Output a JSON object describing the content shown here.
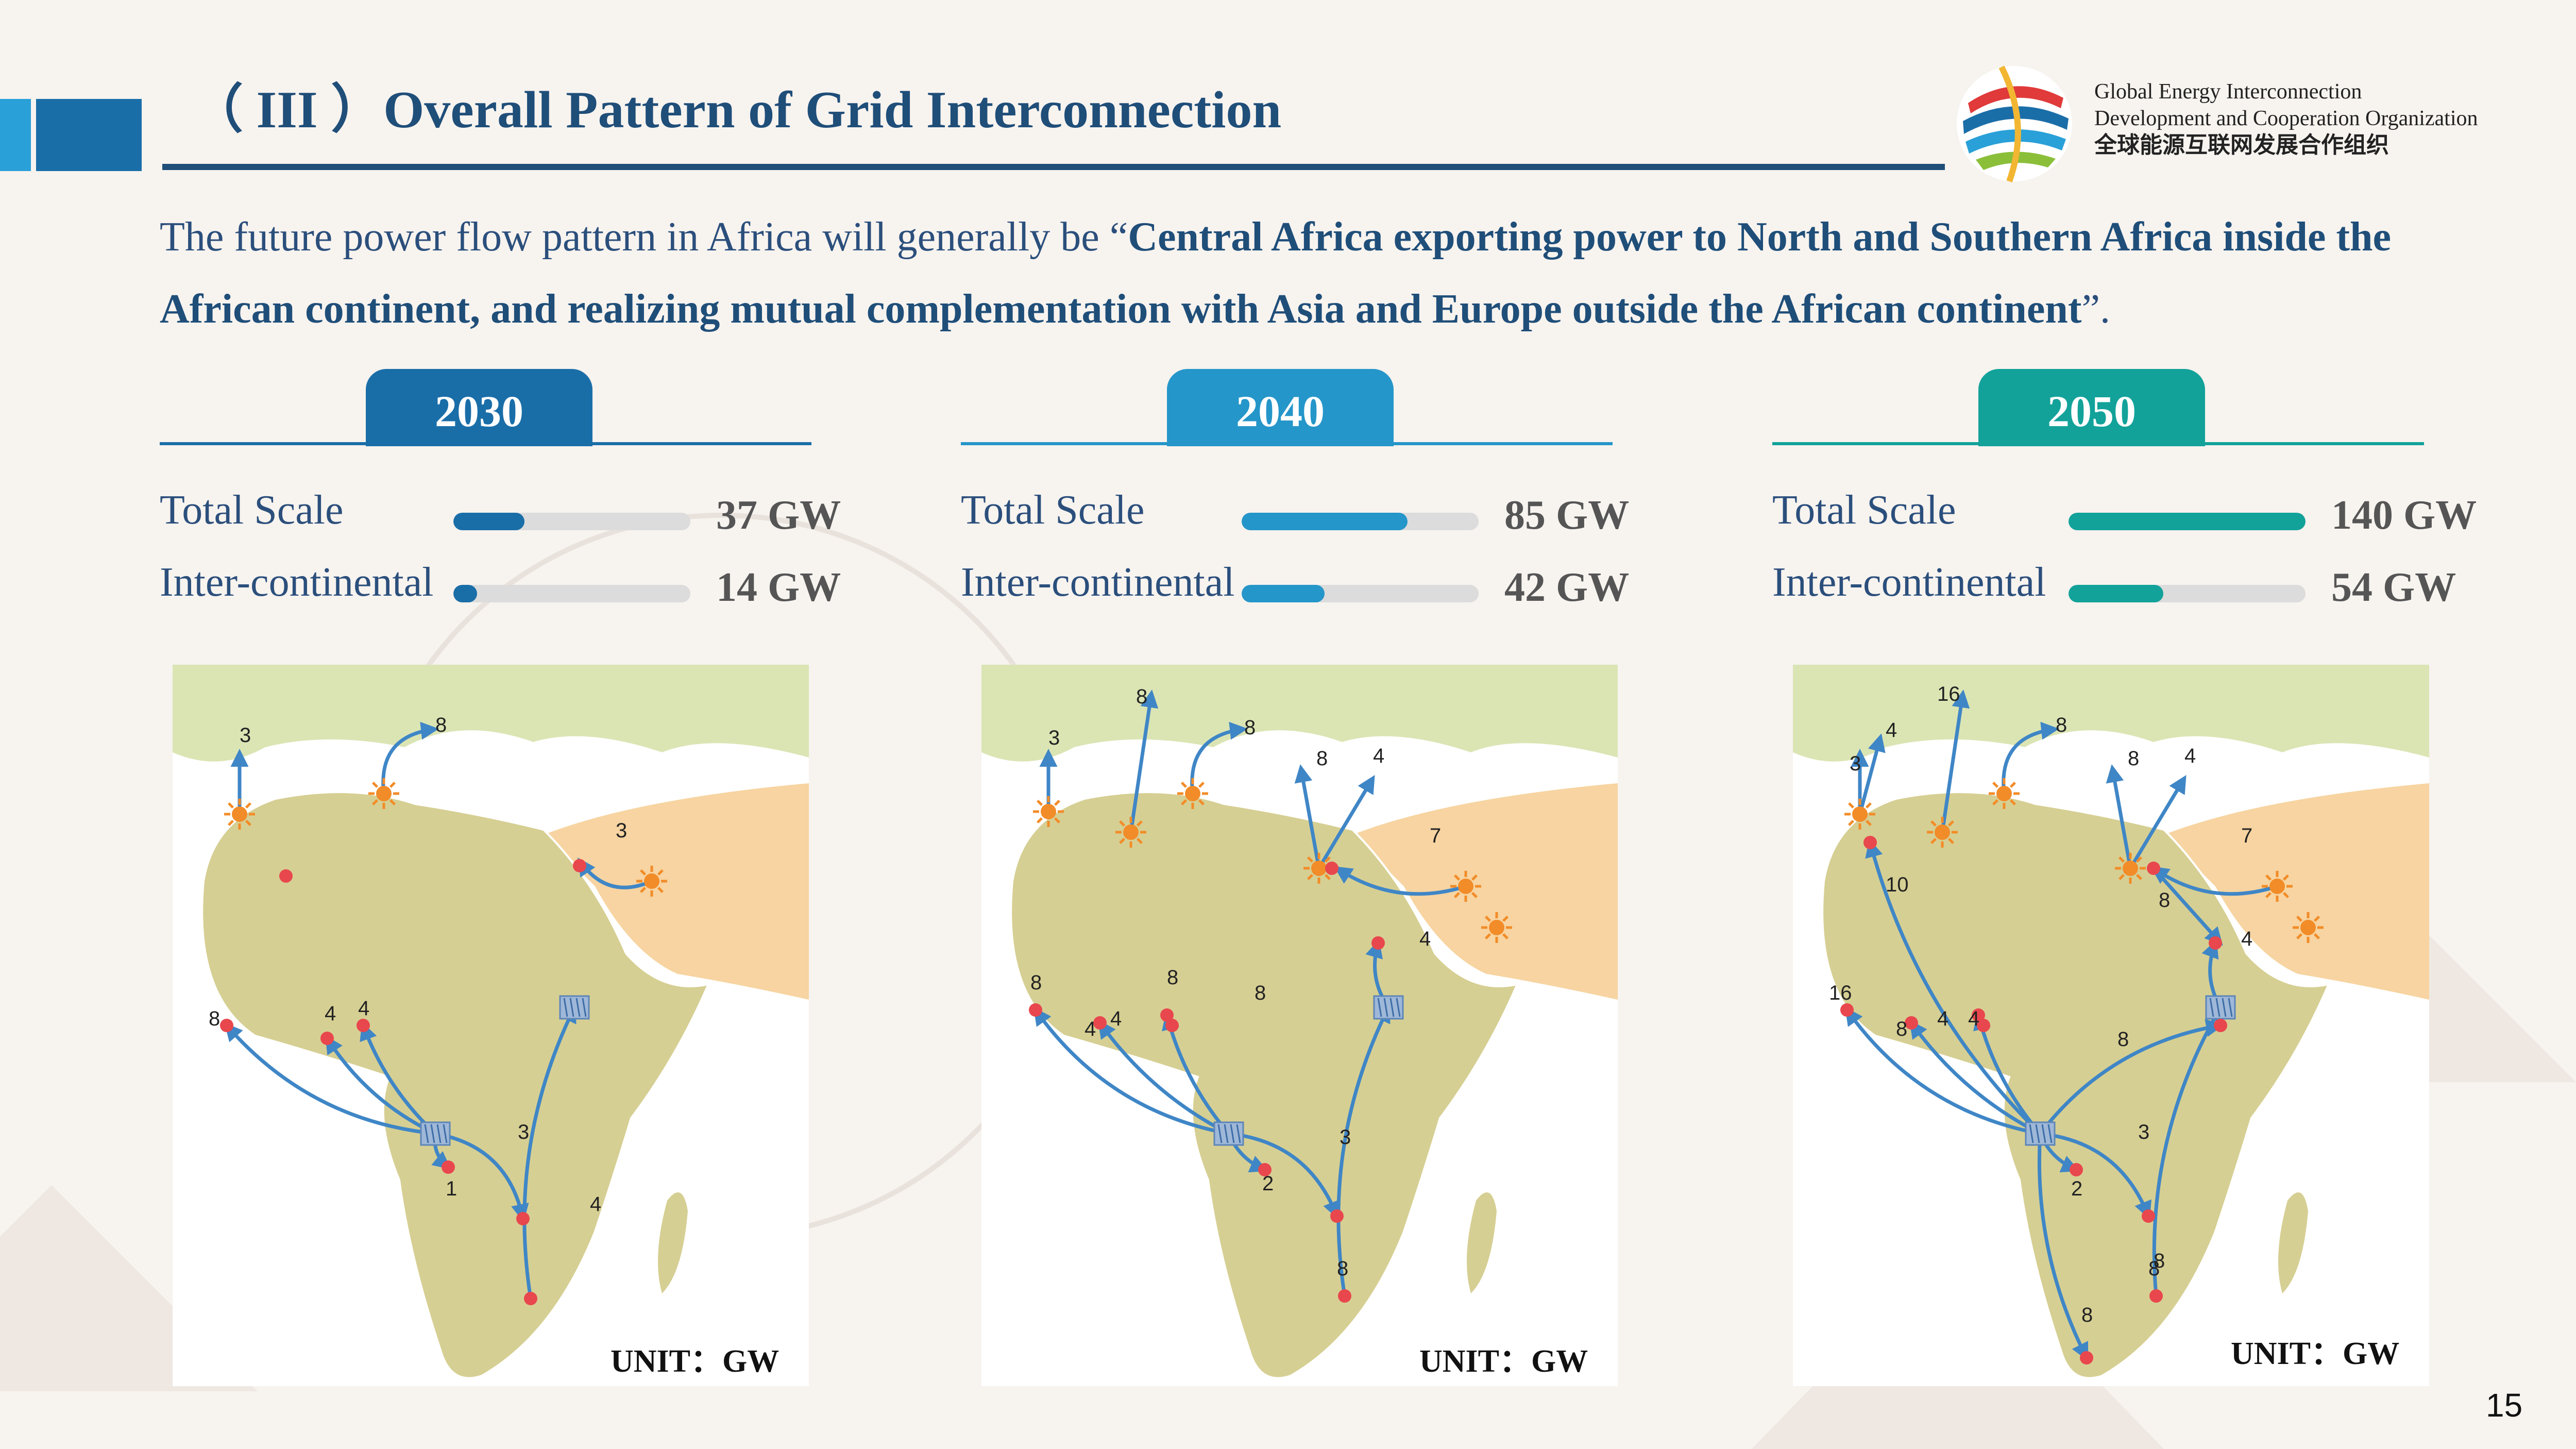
{
  "header": {
    "title": "（ III ）Overall Pattern of Grid Interconnection",
    "org_line1": "Global Energy Interconnection",
    "org_line2": "Development and Cooperation Organization",
    "org_cn": "全球能源互联网发展合作组织"
  },
  "intro": {
    "prefix": "The future power flow pattern in Africa will generally be “",
    "bold": "Central Africa exporting power to North and Southern Africa inside the African continent, and realizing mutual complementation with Asia and Europe outside the African continent",
    "suffix": "”."
  },
  "panels": [
    {
      "year": "2030",
      "color": "#1a6ea8",
      "total_label": "Total Scale",
      "total_value": "37 GW",
      "total_fraction": 0.3,
      "inter_label": "Inter-continental",
      "inter_value": "14 GW",
      "inter_fraction": 0.1,
      "unit": "UNIT：GW",
      "flow_labels": [
        {
          "text": "3"
        },
        {
          "text": "8"
        },
        {
          "text": "3"
        },
        {
          "text": "8"
        },
        {
          "text": "4"
        },
        {
          "text": "4"
        },
        {
          "text": "3"
        },
        {
          "text": "1"
        },
        {
          "text": "4"
        }
      ]
    },
    {
      "year": "2040",
      "color": "#2596c9",
      "total_label": "Total Scale",
      "total_value": "85 GW",
      "total_fraction": 0.7,
      "inter_label": "Inter-continental",
      "inter_value": "42 GW",
      "inter_fraction": 0.35,
      "unit": "UNIT：GW",
      "flow_labels": [
        {
          "text": "3"
        },
        {
          "text": "8"
        },
        {
          "text": "8"
        },
        {
          "text": "8"
        },
        {
          "text": "4"
        },
        {
          "text": "7"
        },
        {
          "text": "4"
        },
        {
          "text": "8"
        },
        {
          "text": "8"
        },
        {
          "text": "4"
        },
        {
          "text": "4"
        },
        {
          "text": "8"
        },
        {
          "text": "2"
        },
        {
          "text": "3"
        },
        {
          "text": "8"
        }
      ]
    },
    {
      "year": "2050",
      "color": "#12a29a",
      "total_label": "Total Scale",
      "total_value": "140 GW",
      "total_fraction": 1.0,
      "inter_label": "Inter-continental",
      "inter_value": "54 GW",
      "inter_fraction": 0.4,
      "unit": "UNIT：GW",
      "flow_labels": [
        {
          "text": "16"
        },
        {
          "text": "4"
        },
        {
          "text": "3"
        },
        {
          "text": "8"
        },
        {
          "text": "8"
        },
        {
          "text": "4"
        },
        {
          "text": "7"
        },
        {
          "text": "10"
        },
        {
          "text": "8"
        },
        {
          "text": "4"
        },
        {
          "text": "16"
        },
        {
          "text": "8"
        },
        {
          "text": "4"
        },
        {
          "text": "4"
        },
        {
          "text": "8"
        },
        {
          "text": "8"
        },
        {
          "text": "2"
        },
        {
          "text": "3"
        },
        {
          "text": "8"
        },
        {
          "text": "8"
        }
      ]
    }
  ],
  "page_number": "15",
  "colors": {
    "flow_arrow": "#3f86c6",
    "node": "#e8474d",
    "solar": "#f28c28",
    "land": "#d6cf93",
    "europe": "#dbe5b4",
    "middle_east": "#f7d4a1",
    "sea": "#ffffff"
  }
}
